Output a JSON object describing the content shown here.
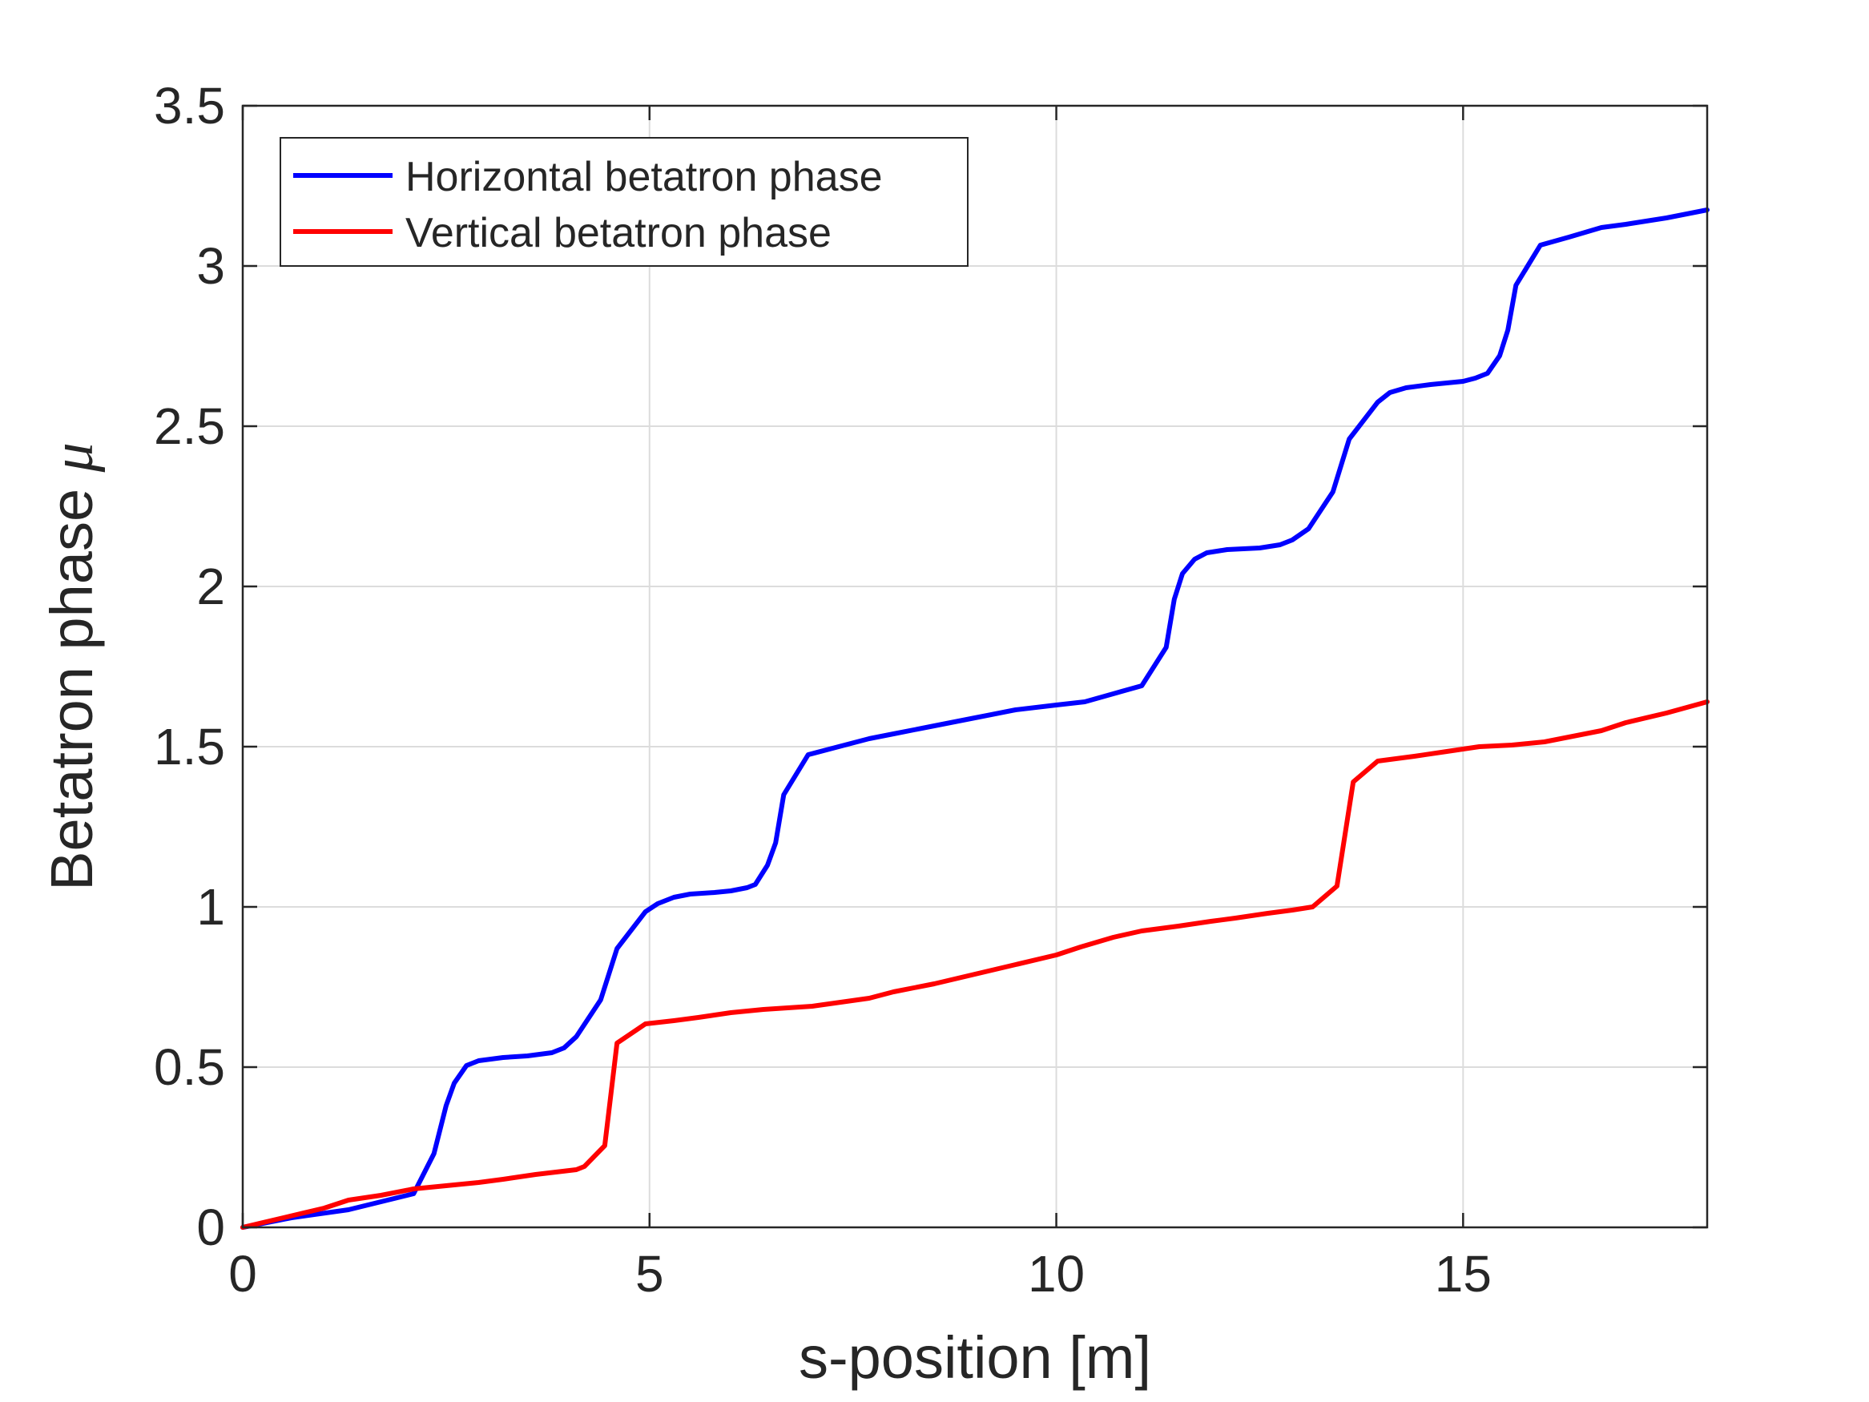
{
  "chart_data": {
    "type": "line",
    "xlabel": "s-position [m]",
    "ylabel": "Betatron phase",
    "ylabel_symbol": "μ",
    "xlim": [
      0,
      18
    ],
    "ylim": [
      0,
      3.5
    ],
    "xticks": [
      0,
      5,
      10,
      15
    ],
    "yticks": [
      0,
      0.5,
      1,
      1.5,
      2,
      2.5,
      3,
      3.5
    ],
    "xtick_labels": [
      "0",
      "5",
      "10",
      "15"
    ],
    "ytick_labels": [
      "0",
      "0.5",
      "1",
      "1.5",
      "2",
      "2.5",
      "3",
      "3.5"
    ],
    "grid": true,
    "legend_position": "top-left",
    "series": [
      {
        "name": "Horizontal betatron phase",
        "color": "#0000ff",
        "x": [
          0,
          0.6,
          1.3,
          2.1,
          2.35,
          2.5,
          2.6,
          2.75,
          2.9,
          3.2,
          3.5,
          3.8,
          3.95,
          4.1,
          4.4,
          4.6,
          4.95,
          5.1,
          5.3,
          5.5,
          5.8,
          6.0,
          6.2,
          6.3,
          6.45,
          6.55,
          6.65,
          6.95,
          7.4,
          7.7,
          8.0,
          8.5,
          9.0,
          9.5,
          10.0,
          10.35,
          10.7,
          11.05,
          11.35,
          11.45,
          11.55,
          11.7,
          11.85,
          12.1,
          12.5,
          12.75,
          12.9,
          13.1,
          13.4,
          13.6,
          13.95,
          14.1,
          14.3,
          14.6,
          14.8,
          15.0,
          15.15,
          15.3,
          15.45,
          15.55,
          15.65,
          15.95,
          16.3,
          16.7,
          17.0,
          17.5,
          18.0
        ],
        "y": [
          0,
          0.03,
          0.055,
          0.105,
          0.23,
          0.38,
          0.45,
          0.505,
          0.52,
          0.53,
          0.535,
          0.545,
          0.56,
          0.595,
          0.71,
          0.87,
          0.985,
          1.01,
          1.03,
          1.04,
          1.045,
          1.05,
          1.06,
          1.07,
          1.13,
          1.2,
          1.35,
          1.475,
          1.505,
          1.525,
          1.54,
          1.565,
          1.59,
          1.615,
          1.63,
          1.64,
          1.665,
          1.69,
          1.81,
          1.96,
          2.04,
          2.085,
          2.105,
          2.115,
          2.12,
          2.13,
          2.145,
          2.18,
          2.295,
          2.46,
          2.575,
          2.605,
          2.62,
          2.63,
          2.635,
          2.64,
          2.65,
          2.665,
          2.72,
          2.8,
          2.94,
          3.065,
          3.09,
          3.12,
          3.13,
          3.15,
          3.175
        ]
      },
      {
        "name": "Vertical betatron phase",
        "color": "#ff0000",
        "x": [
          0,
          0.5,
          1.0,
          1.3,
          1.7,
          2.1,
          2.5,
          2.9,
          3.2,
          3.6,
          4.1,
          4.2,
          4.45,
          4.6,
          4.95,
          5.3,
          5.6,
          6.0,
          6.4,
          7.0,
          7.7,
          8.0,
          8.5,
          9.0,
          9.5,
          10.0,
          10.3,
          10.7,
          11.05,
          11.5,
          11.9,
          12.2,
          12.6,
          12.9,
          13.15,
          13.45,
          13.65,
          13.95,
          14.1,
          14.4,
          14.8,
          15.2,
          15.6,
          16.0,
          16.4,
          16.7,
          17.0,
          17.5,
          18.0
        ],
        "y": [
          0,
          0.03,
          0.06,
          0.085,
          0.1,
          0.12,
          0.13,
          0.14,
          0.15,
          0.165,
          0.18,
          0.19,
          0.255,
          0.575,
          0.635,
          0.645,
          0.655,
          0.67,
          0.68,
          0.69,
          0.715,
          0.735,
          0.76,
          0.79,
          0.82,
          0.85,
          0.875,
          0.905,
          0.925,
          0.94,
          0.955,
          0.965,
          0.98,
          0.99,
          1.0,
          1.065,
          1.39,
          1.455,
          1.46,
          1.47,
          1.485,
          1.5,
          1.505,
          1.515,
          1.535,
          1.55,
          1.575,
          1.605,
          1.64
        ]
      }
    ]
  }
}
